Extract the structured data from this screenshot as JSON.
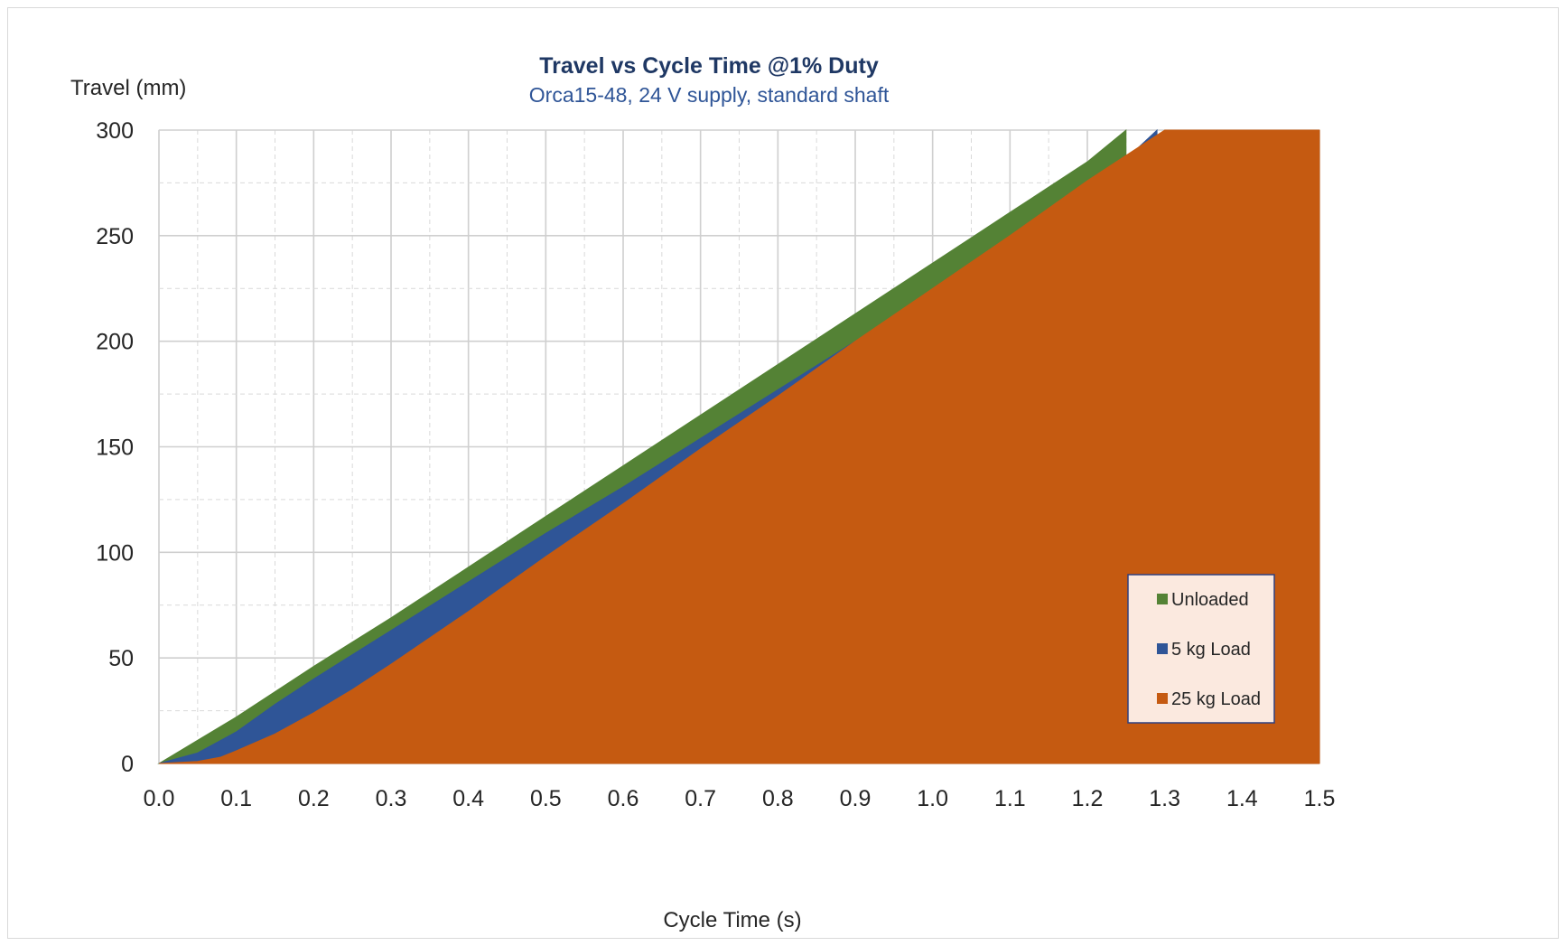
{
  "chart_data": {
    "type": "area",
    "title": "Travel vs Cycle Time @1% Duty",
    "subtitle": "Orca15-48, 24 V supply, standard shaft",
    "xlabel": "Cycle Time (s)",
    "ylabel": "Travel (mm)",
    "xlim": [
      0,
      1.5
    ],
    "ylim": [
      0,
      300
    ],
    "x_ticks": [
      "0.0",
      "0.1",
      "0.2",
      "0.3",
      "0.4",
      "0.5",
      "0.6",
      "0.7",
      "0.8",
      "0.9",
      "1.0",
      "1.1",
      "1.2",
      "1.3",
      "1.4",
      "1.5"
    ],
    "y_ticks": [
      "0",
      "50",
      "100",
      "150",
      "200",
      "250",
      "300"
    ],
    "grid": true,
    "legend_position": "bottom-right",
    "series": [
      {
        "name": "Unloaded",
        "color": "#548235",
        "x": [
          0,
          0.05,
          0.1,
          0.2,
          0.3,
          0.4,
          0.5,
          0.6,
          0.7,
          0.8,
          0.9,
          1.0,
          1.1,
          1.2,
          1.25
        ],
        "y": [
          0,
          11,
          22,
          46,
          69,
          93,
          117,
          141,
          165,
          189,
          213,
          237,
          261,
          285,
          300
        ]
      },
      {
        "name": "5 kg Load",
        "color": "#2f5597",
        "x": [
          0,
          0.05,
          0.1,
          0.15,
          0.2,
          0.3,
          0.4,
          0.5,
          0.6,
          0.7,
          0.8,
          0.9,
          1.0,
          1.1,
          1.2,
          1.29
        ],
        "y": [
          0,
          5,
          15,
          28,
          40,
          63,
          86,
          109,
          131,
          154,
          177,
          200,
          223,
          246,
          269,
          300
        ]
      },
      {
        "name": "25 kg Load",
        "color": "#c55a11",
        "x": [
          0,
          0.05,
          0.08,
          0.1,
          0.15,
          0.2,
          0.25,
          0.3,
          0.4,
          0.5,
          0.6,
          0.7,
          0.8,
          0.9,
          1.0,
          1.1,
          1.2,
          1.3,
          1.4,
          1.5
        ],
        "y": [
          0,
          1,
          3,
          6,
          14,
          24,
          35,
          47,
          72,
          98,
          123,
          149,
          174,
          200,
          225,
          250,
          276,
          300,
          300,
          300
        ]
      }
    ]
  }
}
